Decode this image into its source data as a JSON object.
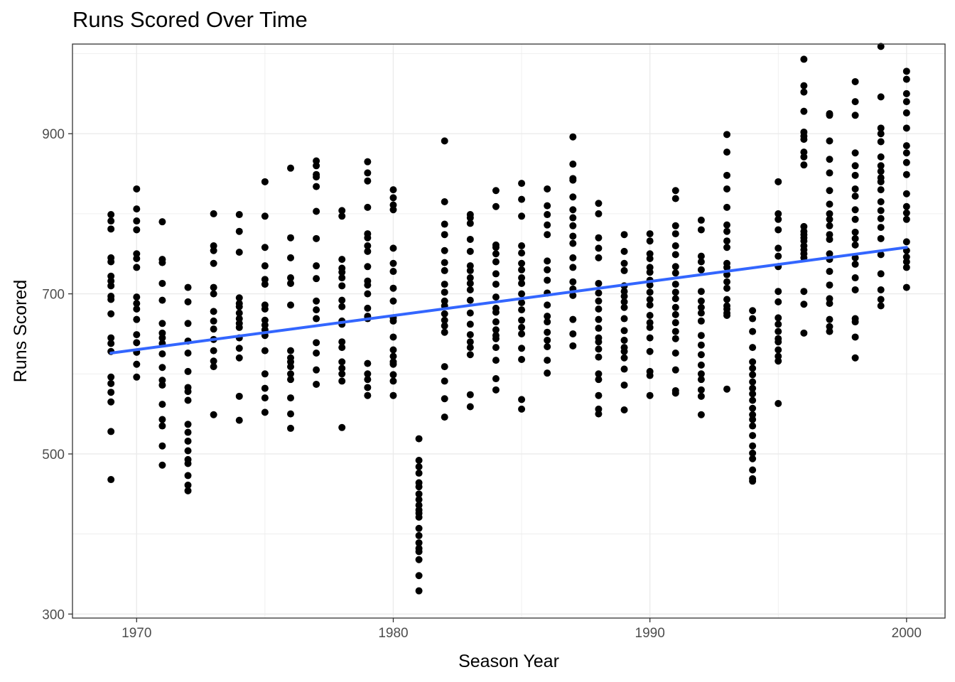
{
  "chart_data": {
    "type": "scatter",
    "title": "Runs Scored Over Time",
    "xlabel": "Season Year",
    "ylabel": "Runs Scored",
    "xlim": [
      1967.5,
      2001.5
    ],
    "ylim": [
      295,
      1012
    ],
    "x_ticks": [
      1970,
      1980,
      1990,
      2000
    ],
    "y_ticks": [
      300,
      500,
      700,
      900
    ],
    "grid": true,
    "legend": "none",
    "colors": {
      "points": "#000000",
      "trend": "#3366ff",
      "grid": "#ebebeb",
      "panel_border": "#333333"
    },
    "trend": {
      "method": "lm",
      "x": [
        1969,
        2000
      ],
      "y": [
        626,
        758
      ]
    },
    "series": [
      {
        "x": 1969,
        "y": [
          799,
          791,
          781,
          745,
          740,
          722,
          716,
          710,
          697,
          693,
          675,
          645,
          638,
          628,
          596,
          588,
          577,
          565,
          528,
          468
        ]
      },
      {
        "x": 1970,
        "y": [
          831,
          806,
          791,
          780,
          750,
          744,
          733,
          696,
          688,
          681,
          668,
          649,
          639,
          627,
          612,
          596
        ]
      },
      {
        "x": 1971,
        "y": [
          790,
          743,
          739,
          713,
          692,
          663,
          651,
          645,
          638,
          625,
          608,
          592,
          586,
          562,
          543,
          535,
          510,
          486
        ]
      },
      {
        "x": 1972,
        "y": [
          708,
          690,
          663,
          641,
          626,
          603,
          583,
          578,
          567,
          537,
          527,
          516,
          504,
          493,
          488,
          473,
          461,
          454
        ]
      },
      {
        "x": 1973,
        "y": [
          800,
          760,
          754,
          738,
          708,
          700,
          678,
          666,
          656,
          643,
          629,
          616,
          609,
          549
        ]
      },
      {
        "x": 1974,
        "y": [
          799,
          778,
          752,
          695,
          688,
          684,
          676,
          669,
          663,
          658,
          645,
          632,
          620,
          572,
          542
        ]
      },
      {
        "x": 1975,
        "y": [
          840,
          797,
          758,
          735,
          718,
          712,
          686,
          681,
          667,
          661,
          655,
          648,
          629,
          600,
          582,
          570,
          552
        ]
      },
      {
        "x": 1976,
        "y": [
          857,
          770,
          745,
          720,
          713,
          686,
          629,
          620,
          615,
          609,
          600,
          593,
          570,
          550,
          532
        ]
      },
      {
        "x": 1977,
        "y": [
          866,
          860,
          849,
          846,
          834,
          803,
          769,
          735,
          719,
          691,
          680,
          669,
          639,
          626,
          605,
          587
        ]
      },
      {
        "x": 1978,
        "y": [
          804,
          797,
          743,
          732,
          727,
          720,
          710,
          692,
          684,
          666,
          662,
          640,
          633,
          615,
          607,
          600,
          591,
          533
        ]
      },
      {
        "x": 1979,
        "y": [
          865,
          851,
          841,
          808,
          775,
          770,
          760,
          753,
          734,
          716,
          711,
          700,
          682,
          672,
          669,
          613,
          600,
          593,
          583,
          573
        ]
      },
      {
        "x": 1980,
        "y": [
          830,
          820,
          811,
          805,
          757,
          738,
          728,
          707,
          691,
          670,
          666,
          646,
          630,
          622,
          615,
          612,
          599,
          591,
          573
        ]
      },
      {
        "x": 1981,
        "y": [
          519,
          492,
          484,
          476,
          464,
          459,
          450,
          443,
          436,
          430,
          426,
          421,
          407,
          398,
          389,
          382,
          378,
          368,
          348,
          329
        ]
      },
      {
        "x": 1982,
        "y": [
          891,
          815,
          787,
          774,
          754,
          739,
          729,
          712,
          702,
          691,
          685,
          675,
          667,
          660,
          652,
          609,
          591,
          569,
          546
        ]
      },
      {
        "x": 1983,
        "y": [
          799,
          795,
          788,
          768,
          753,
          735,
          729,
          720,
          713,
          705,
          692,
          676,
          662,
          649,
          640,
          633,
          624,
          574,
          559
        ]
      },
      {
        "x": 1984,
        "y": [
          829,
          809,
          761,
          758,
          750,
          740,
          725,
          712,
          696,
          682,
          677,
          665,
          655,
          648,
          644,
          633,
          617,
          594,
          580
        ]
      },
      {
        "x": 1985,
        "y": [
          838,
          818,
          797,
          760,
          751,
          738,
          730,
          720,
          713,
          700,
          689,
          680,
          667,
          658,
          650,
          632,
          618,
          568,
          556
        ]
      },
      {
        "x": 1986,
        "y": [
          831,
          810,
          799,
          786,
          774,
          741,
          730,
          717,
          701,
          686,
          672,
          665,
          652,
          642,
          634,
          617,
          601
        ]
      },
      {
        "x": 1987,
        "y": [
          896,
          862,
          844,
          842,
          821,
          805,
          795,
          785,
          772,
          763,
          745,
          733,
          715,
          706,
          698,
          668,
          650,
          635
        ]
      },
      {
        "x": 1988,
        "y": [
          813,
          800,
          770,
          757,
          745,
          713,
          701,
          691,
          681,
          668,
          657,
          645,
          640,
          631,
          621,
          600,
          593,
          573,
          556,
          550
        ]
      },
      {
        "x": 1989,
        "y": [
          774,
          753,
          738,
          729,
          710,
          703,
          697,
          690,
          683,
          669,
          654,
          642,
          633,
          628,
          620,
          606,
          586,
          555
        ]
      },
      {
        "x": 1990,
        "y": [
          775,
          766,
          750,
          744,
          733,
          727,
          717,
          711,
          702,
          693,
          686,
          673,
          664,
          658,
          645,
          628,
          603,
          598,
          573
        ]
      },
      {
        "x": 1991,
        "y": [
          829,
          819,
          785,
          775,
          760,
          749,
          734,
          726,
          712,
          702,
          694,
          683,
          674,
          664,
          653,
          644,
          626,
          605,
          579,
          576
        ]
      },
      {
        "x": 1992,
        "y": [
          792,
          780,
          747,
          740,
          730,
          703,
          691,
          683,
          676,
          666,
          648,
          636,
          624,
          611,
          600,
          593,
          580,
          572,
          549
        ]
      },
      {
        "x": 1993,
        "y": [
          899,
          877,
          848,
          831,
          808,
          786,
          778,
          766,
          758,
          738,
          733,
          724,
          715,
          707,
          693,
          685,
          681,
          676,
          673,
          581
        ]
      },
      {
        "x": 1994,
        "y": [
          679,
          669,
          653,
          633,
          615,
          607,
          599,
          590,
          582,
          575,
          567,
          557,
          549,
          543,
          535,
          523,
          510,
          501,
          494,
          480,
          469,
          466
        ]
      },
      {
        "x": 1995,
        "y": [
          840,
          800,
          793,
          780,
          757,
          747,
          734,
          703,
          690,
          670,
          662,
          653,
          644,
          640,
          630,
          622,
          616,
          563
        ]
      },
      {
        "x": 1996,
        "y": [
          993,
          960,
          952,
          928,
          902,
          897,
          893,
          877,
          871,
          861,
          784,
          778,
          774,
          770,
          766,
          760,
          755,
          750,
          745,
          703,
          687,
          651
        ]
      },
      {
        "x": 1997,
        "y": [
          925,
          923,
          891,
          868,
          851,
          829,
          812,
          800,
          793,
          785,
          774,
          768,
          750,
          743,
          728,
          711,
          694,
          688,
          668,
          659,
          653
        ]
      },
      {
        "x": 1998,
        "y": [
          965,
          940,
          923,
          876,
          860,
          848,
          831,
          822,
          805,
          793,
          777,
          769,
          761,
          745,
          737,
          720,
          705,
          669,
          665,
          646,
          620
        ]
      },
      {
        "x": 1999,
        "y": [
          1009,
          946,
          907,
          900,
          890,
          871,
          860,
          853,
          845,
          840,
          830,
          815,
          804,
          794,
          783,
          769,
          749,
          725,
          705,
          693,
          685
        ]
      },
      {
        "x": 2000,
        "y": [
          978,
          968,
          950,
          940,
          926,
          907,
          885,
          876,
          864,
          849,
          825,
          809,
          801,
          793,
          765,
          754,
          746,
          740,
          733,
          708
        ]
      }
    ]
  }
}
